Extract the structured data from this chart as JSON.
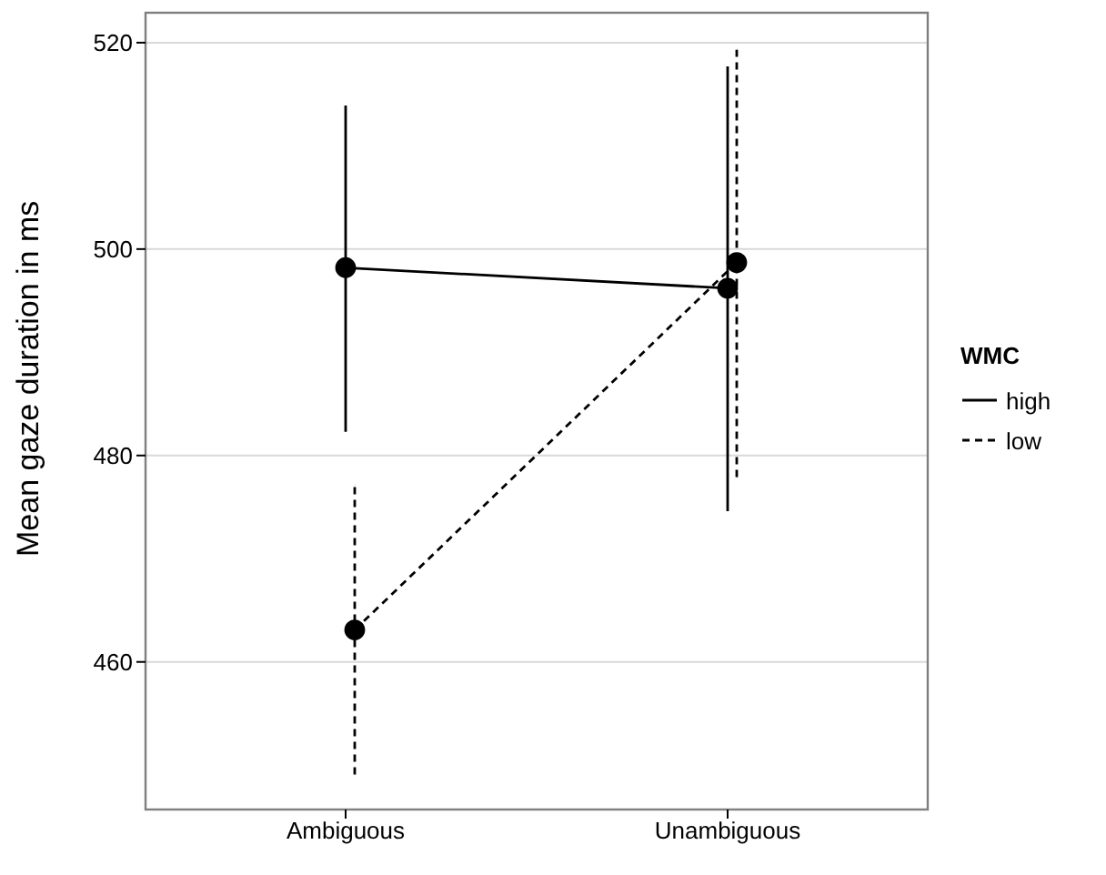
{
  "chart_data": {
    "type": "line",
    "ylabel": "Mean gaze duration in ms",
    "legend_title": "WMC",
    "categories": [
      "Ambiguous",
      "Unambiguous"
    ],
    "series": [
      {
        "name": "high",
        "color": "#000000",
        "values": [
          498.2,
          496.2
        ],
        "errors": [
          [
            482.3,
            513.9
          ],
          [
            474.6,
            517.7
          ]
        ],
        "line_style": "solid"
      },
      {
        "name": "low",
        "color": "#000000",
        "values": [
          463.1,
          498.7
        ],
        "errors": [
          [
            449.1,
            477.1
          ],
          [
            477.9,
            519.3
          ]
        ],
        "line_style": "dashed"
      }
    ],
    "ylim": [
      445.7,
      522.9
    ],
    "yticks": [
      460,
      480,
      500,
      520
    ],
    "grid": "y",
    "legend": "right",
    "marker": "circle"
  }
}
